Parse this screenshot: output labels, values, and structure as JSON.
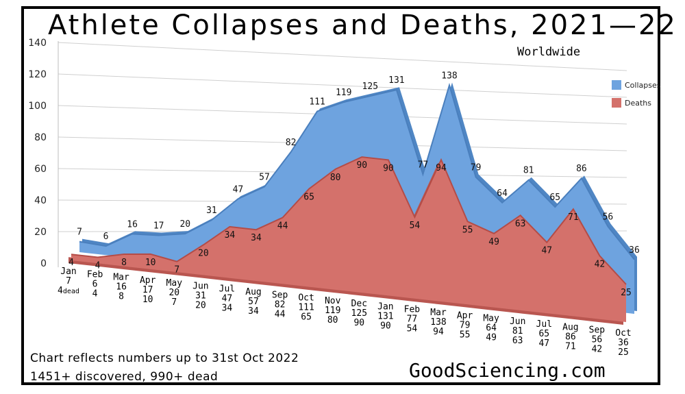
{
  "title": "Athlete Collapses and Deaths, 2021—22",
  "subtitle": "Worldwide",
  "footer": {
    "line1": "Chart reflects numbers up to 31st Oct 2022",
    "line2": "1451+ discovered, 990+ dead",
    "site": "GoodSciencing.com"
  },
  "chart_data": {
    "type": "area",
    "y_axis": {
      "min": 0,
      "max": 140,
      "ticks": [
        0,
        20,
        40,
        60,
        80,
        100,
        120,
        140
      ]
    },
    "grid": true,
    "legend_position": "right",
    "categories": [
      "Jan",
      "Feb",
      "Mar",
      "Apr",
      "May",
      "Jun",
      "Jul",
      "Aug",
      "Sep",
      "Oct",
      "Nov",
      "Dec",
      "Jan",
      "Feb",
      "Mar",
      "Apr",
      "May",
      "Jun",
      "Jul",
      "Aug",
      "Sep",
      "Oct"
    ],
    "series": [
      {
        "name": "Collapses",
        "color": "#6ea3df",
        "values": [
          7,
          6,
          16,
          17,
          20,
          31,
          47,
          57,
          82,
          111,
          119,
          125,
          131,
          77,
          138,
          79,
          64,
          81,
          65,
          86,
          56,
          36
        ]
      },
      {
        "name": "Deaths",
        "color": "#d4716b",
        "values": [
          4,
          4,
          8,
          10,
          7,
          20,
          34,
          34,
          44,
          65,
          80,
          90,
          90,
          54,
          94,
          55,
          49,
          63,
          47,
          71,
          42,
          25
        ]
      }
    ],
    "first_death_suffix": "dead"
  }
}
